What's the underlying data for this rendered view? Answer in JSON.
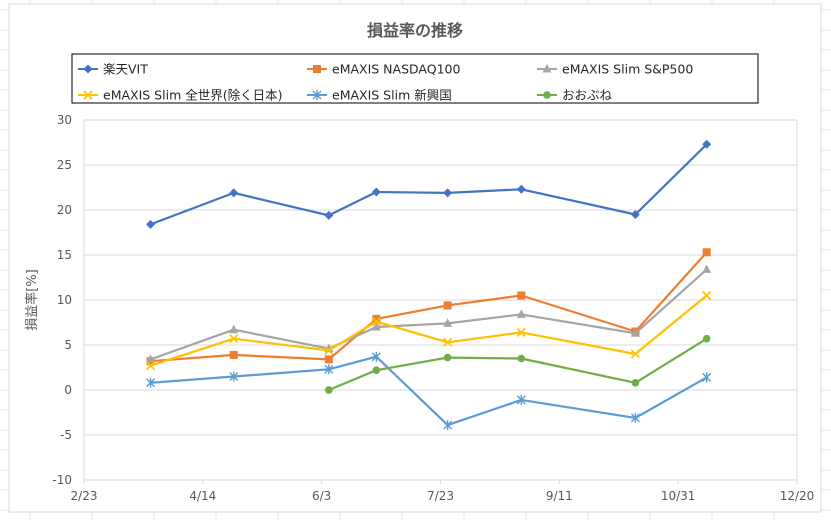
{
  "chart_data": {
    "type": "line",
    "title": "損益率の推移",
    "ylabel": "損益率[%]",
    "xlabel": "",
    "ylim": [
      -10,
      30
    ],
    "y_ticks": [
      -10,
      -5,
      0,
      5,
      10,
      15,
      20,
      25,
      30
    ],
    "x_ticks": [
      "2/23",
      "4/14",
      "6/3",
      "7/23",
      "9/11",
      "10/31",
      "12/20"
    ],
    "x_range": [
      "2/23",
      "12/20"
    ],
    "grid": "horizontal",
    "legend_position": "top",
    "x": [
      "3/23",
      "4/27",
      "6/6",
      "6/26",
      "7/26",
      "8/26",
      "10/13",
      "11/12"
    ],
    "series": [
      {
        "name": "楽天VIT",
        "color": "#4472c4",
        "marker": "diamond",
        "values": [
          18.4,
          21.9,
          19.4,
          22.0,
          21.9,
          22.3,
          19.5,
          27.3
        ]
      },
      {
        "name": "eMAXIS NASDAQ100",
        "color": "#ed7d31",
        "marker": "square",
        "values": [
          3.2,
          3.9,
          3.4,
          7.9,
          9.4,
          10.5,
          6.5,
          15.3
        ]
      },
      {
        "name": "eMAXIS Slim S&P500",
        "color": "#a5a5a5",
        "marker": "triangle",
        "values": [
          3.4,
          6.7,
          4.6,
          7.0,
          7.4,
          8.4,
          6.3,
          13.4
        ]
      },
      {
        "name": "eMAXIS Slim 全世界(除く日本)",
        "color": "#ffc000",
        "marker": "x",
        "values": [
          2.7,
          5.7,
          4.4,
          7.6,
          5.3,
          6.4,
          4.0,
          10.5
        ]
      },
      {
        "name": "eMAXIS Slim 新興国",
        "color": "#5b9bd5",
        "marker": "star",
        "values": [
          0.8,
          1.5,
          2.3,
          3.7,
          -3.9,
          -1.1,
          -3.1,
          1.4
        ]
      },
      {
        "name": "おおぶね",
        "color": "#70ad47",
        "marker": "circle",
        "values": [
          null,
          null,
          0.0,
          2.2,
          3.6,
          3.5,
          0.8,
          5.7
        ]
      }
    ]
  }
}
